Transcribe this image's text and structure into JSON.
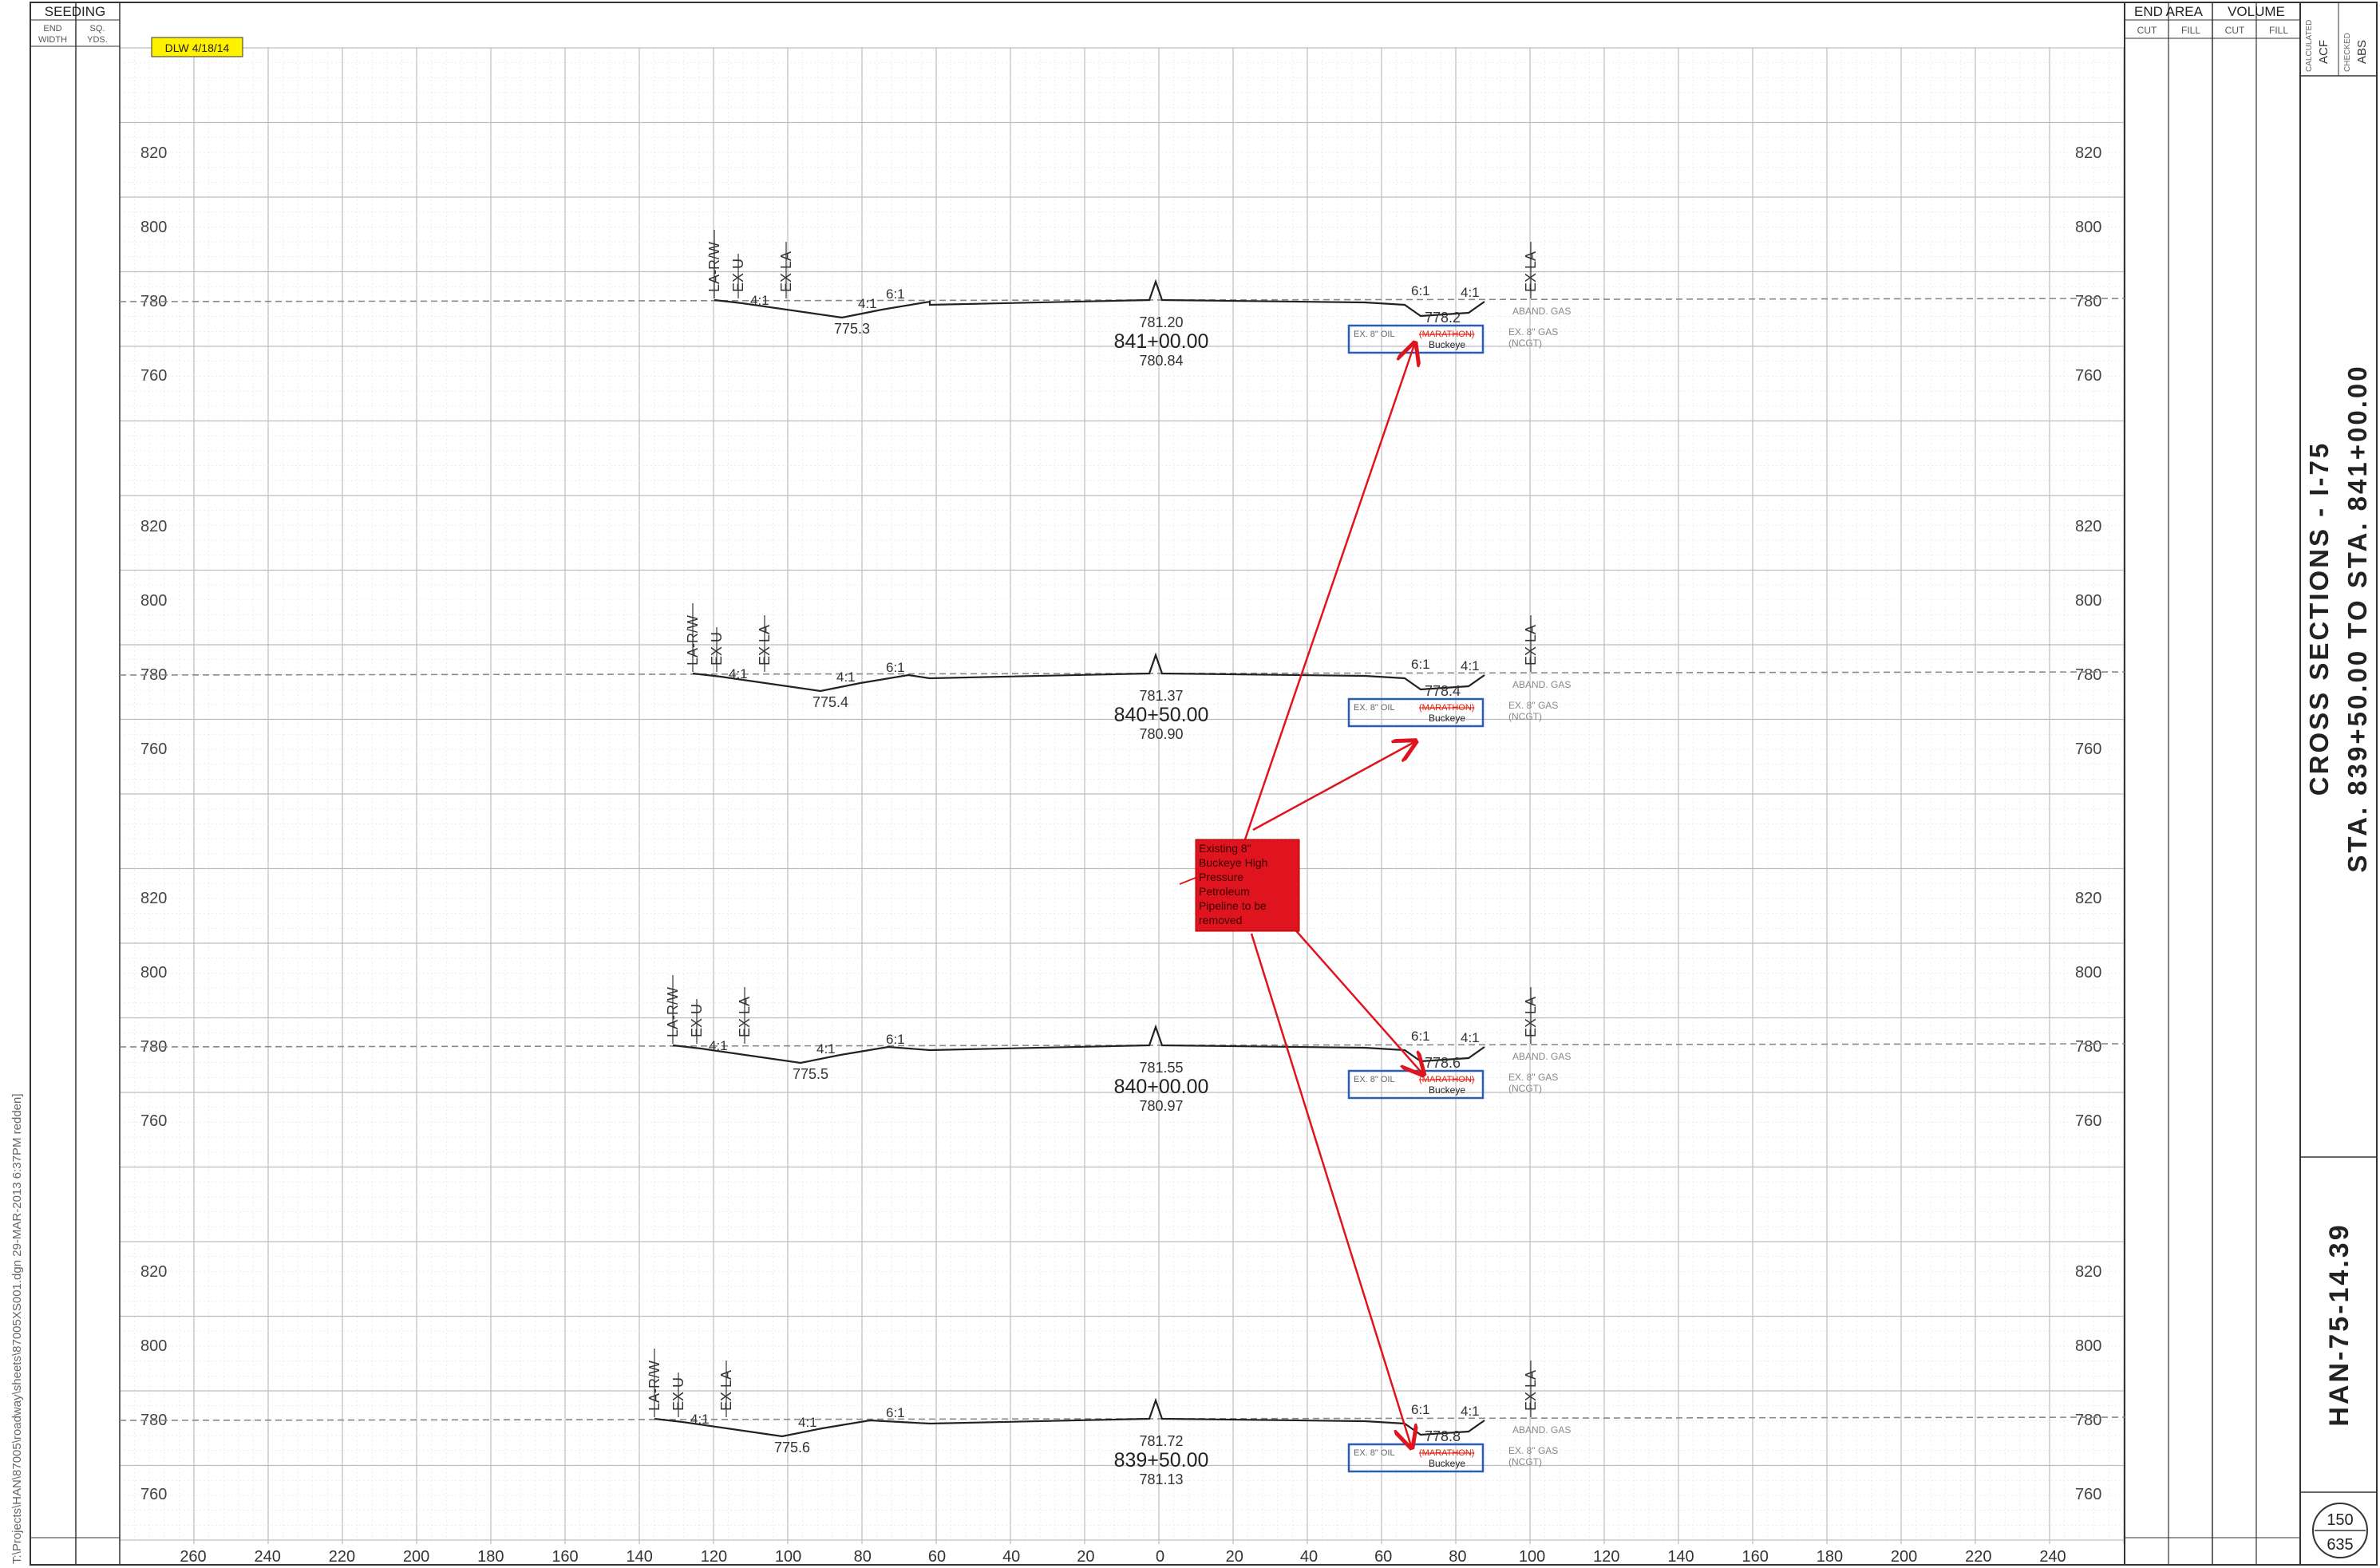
{
  "stamp": "DLW 4/18/14",
  "seeding": {
    "title": "SEEDING",
    "col1": [
      "END",
      "WIDTH"
    ],
    "col2": [
      "SQ.",
      "YDS."
    ]
  },
  "end_area": {
    "title": "END AREA",
    "cols": [
      "CUT",
      "FILL"
    ]
  },
  "volume": {
    "title": "VOLUME",
    "cols": [
      "CUT",
      "FILL"
    ]
  },
  "credits": [
    {
      "label": "CALCULATED",
      "value": "ACF"
    },
    {
      "label": "CHECKED",
      "value": "ABS"
    }
  ],
  "sheet_title": {
    "line1": "CROSS  SECTIONS  -  I-75",
    "line2": "STA. 839+50.00 TO STA. 841+00.00"
  },
  "project_id": "HAN-75-14.39",
  "sheet_number": {
    "this": "150",
    "total": "635"
  },
  "file_path": "T:\\Projects\\HAN\\87005\\roadway\\sheets\\87005XS001.dgn     29-MAR-2013  6:37PM     redden]",
  "x_axis_ticks": [
    "260",
    "240",
    "220",
    "200",
    "180",
    "160",
    "140",
    "120",
    "100",
    "80",
    "60",
    "40",
    "20",
    "0",
    "20",
    "40",
    "60",
    "80",
    "100",
    "120",
    "140",
    "160",
    "180",
    "200",
    "220",
    "240"
  ],
  "elevation_labels": [
    "820",
    "800",
    "780",
    "760"
  ],
  "annotation": {
    "text": [
      "Existing 8\"",
      "Buckeye High",
      "Pressure",
      "Petroleum",
      "Pipeline to be",
      "removed"
    ],
    "color": "#e0141e"
  },
  "sections": [
    {
      "station": "841+00.00",
      "cl_elev": "781.20",
      "ditch_elev": "780.84",
      "left_low": "775.3",
      "right_low": "778.2"
    },
    {
      "station": "840+50.00",
      "cl_elev": "781.37",
      "ditch_elev": "780.90",
      "left_low": "775.4",
      "right_low": "778.4"
    },
    {
      "station": "840+00.00",
      "cl_elev": "781.55",
      "ditch_elev": "780.97",
      "left_low": "775.5",
      "right_low": "778.6"
    },
    {
      "station": "839+50.00",
      "cl_elev": "781.72",
      "ditch_elev": "781.13",
      "left_low": "775.6",
      "right_low": "778.8"
    }
  ],
  "labels": {
    "la_rw": "LA-R/W",
    "ex_u": "EX U",
    "ex_la": "EX LA",
    "ex_la_right": "EX LA",
    "slope_41": "4:1",
    "slope_61": "6:1",
    "aband_gas": "ABAND. GAS",
    "ex_gas": "EX. 8\" GAS",
    "ncgt": "(NCGT)",
    "ex_oil": "EX. 8\" OIL",
    "oil_strike": "(MARATHON)",
    "buckeye": "Buckeye"
  }
}
